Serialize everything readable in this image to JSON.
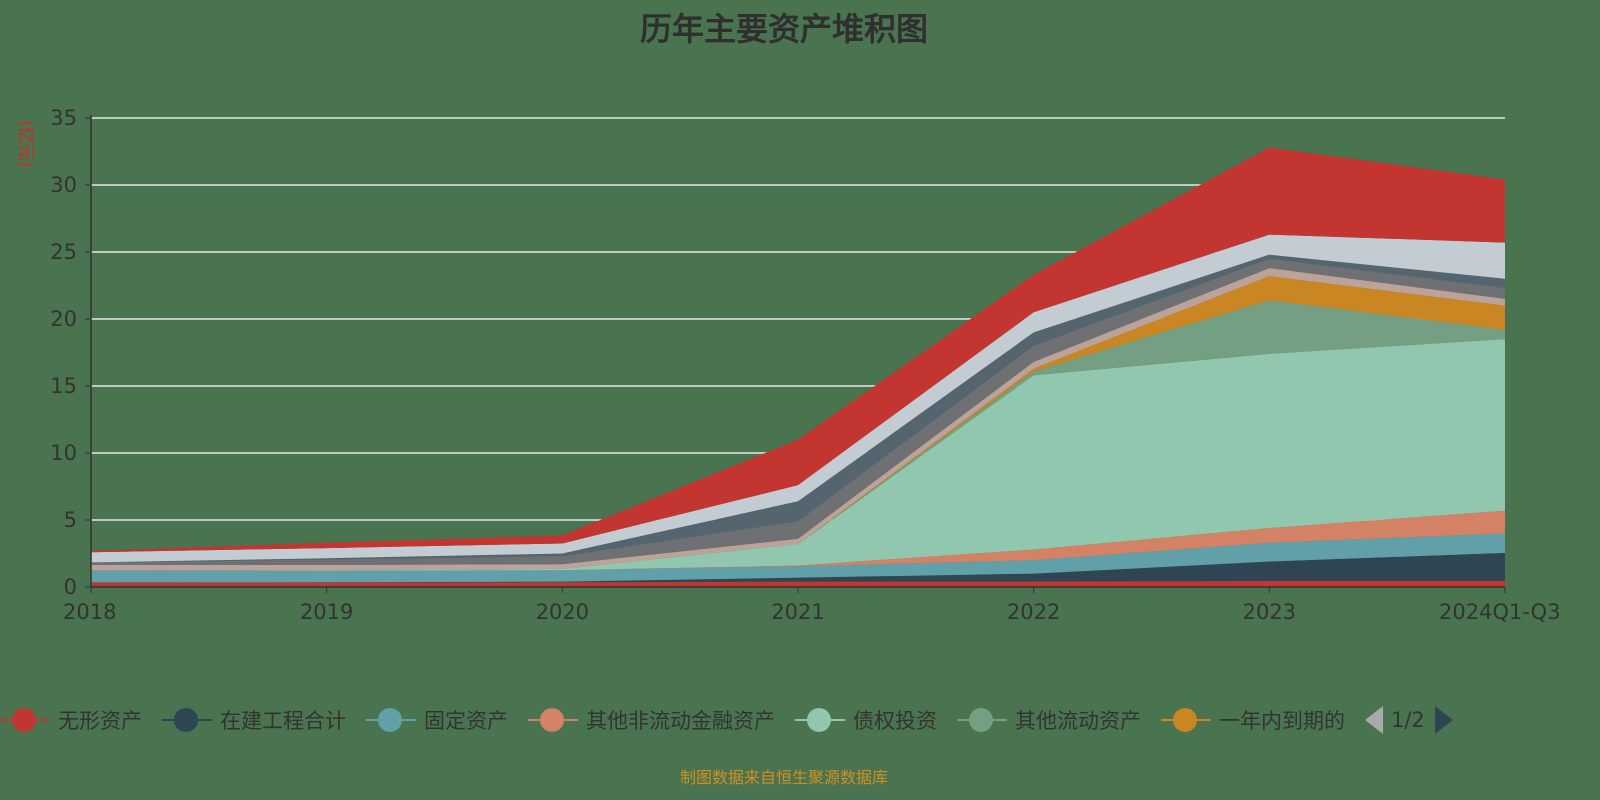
{
  "title": "历年主要资产堆积图",
  "footer": "制图数据来自恒生聚源数据库",
  "legend_page": "1/2",
  "chart_data": {
    "type": "area",
    "stacked": true,
    "ylabel": "(亿元)",
    "ylim": [
      0,
      35
    ],
    "yticks": [
      "0",
      "5",
      "10",
      "15",
      "20",
      "25",
      "30",
      "35"
    ],
    "categories": [
      "2018",
      "2019",
      "2020",
      "2021",
      "2022",
      "2023",
      "2024Q1-Q3"
    ],
    "grid": true,
    "legend_placement": "bottom",
    "series": [
      {
        "name": "无形资产",
        "color": "#c23531",
        "values": [
          0.32,
          0.33,
          0.35,
          0.4,
          0.4,
          0.45,
          0.45
        ]
      },
      {
        "name": "在建工程合计",
        "color": "#2f4554",
        "values": [
          0.02,
          0.02,
          0.05,
          0.3,
          0.6,
          1.45,
          2.1
        ]
      },
      {
        "name": "固定资产",
        "color": "#61a0a8",
        "values": [
          0.9,
          0.87,
          0.85,
          0.85,
          1.0,
          1.4,
          1.45
        ]
      },
      {
        "name": "其他非流动金融资产",
        "color": "#d48265",
        "values": [
          0,
          0,
          0,
          0.05,
          0.8,
          1.1,
          1.7
        ]
      },
      {
        "name": "债权投资",
        "color": "#91c7ae",
        "values": [
          0,
          0.05,
          0.1,
          1.6,
          13.0,
          13.0,
          12.8
        ]
      },
      {
        "name": "其他流动资产",
        "color": "#749f83",
        "values": [
          0,
          0,
          0,
          0,
          0.3,
          4.0,
          0.7
        ]
      },
      {
        "name": "一年内到期的",
        "color": "#ca8622",
        "values": [
          0,
          0,
          0,
          0,
          0.2,
          1.8,
          1.8
        ]
      },
      {
        "color": "#bda29a",
        "values": [
          0.4,
          0.38,
          0.35,
          0.4,
          0.5,
          0.6,
          0.5
        ]
      },
      {
        "color": "#6e7074",
        "values": [
          0.2,
          0.4,
          0.6,
          1.3,
          1.2,
          0.7,
          0.8
        ]
      },
      {
        "color": "#546570",
        "values": [
          0,
          0.1,
          0.2,
          1.5,
          1.0,
          0.3,
          0.7
        ]
      },
      {
        "color": "#c4ccd3",
        "values": [
          0.75,
          0.75,
          0.75,
          1.2,
          1.5,
          1.5,
          2.7
        ]
      },
      {
        "color": "#c23531",
        "values": [
          0.1,
          0.4,
          0.6,
          3.4,
          2.8,
          6.5,
          4.7
        ]
      }
    ],
    "legend_visible": [
      "无形资产",
      "在建工程合计",
      "固定资产",
      "其他非流动金融资产",
      "债权投资",
      "其他流动资产",
      "一年内到期的"
    ]
  }
}
